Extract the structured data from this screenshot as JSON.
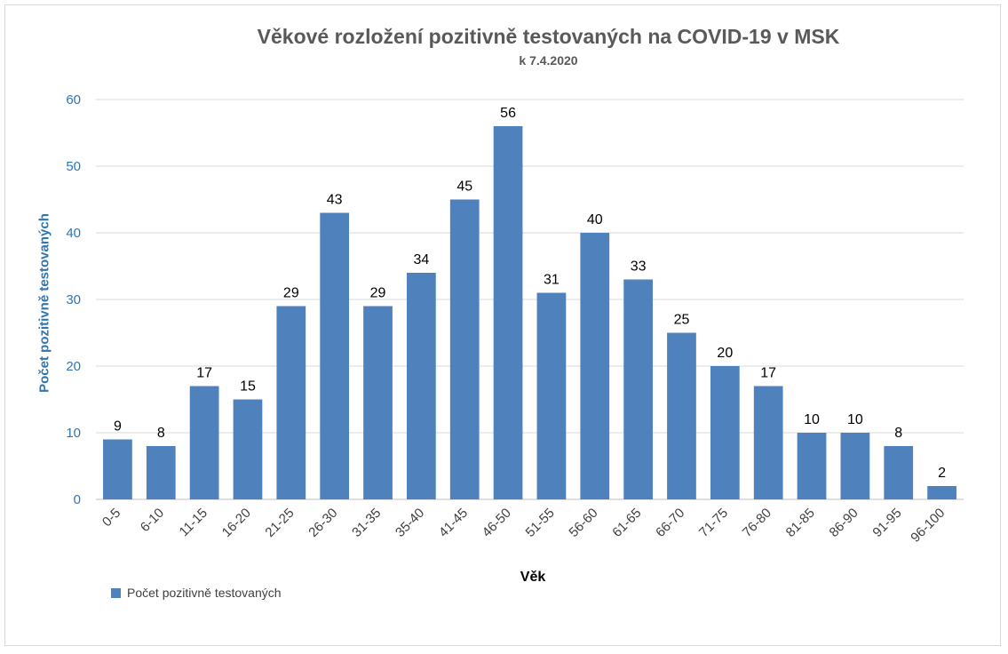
{
  "chart_data": {
    "type": "bar",
    "title": "Věkové rozložení pozitivně testovaných na COVID-19 v MSK",
    "subtitle": "k 7.4.2020",
    "xlabel": "Věk",
    "ylabel": "Počet pozitivně testovaných",
    "ylim": [
      0,
      60
    ],
    "yticks": [
      0,
      10,
      20,
      30,
      40,
      50,
      60
    ],
    "grid": true,
    "legend_position": "bottom-left",
    "categories": [
      "0-5",
      "6-10",
      "11-15",
      "16-20",
      "21-25",
      "26-30",
      "31-35",
      "35-40",
      "41-45",
      "46-50",
      "51-55",
      "56-60",
      "61-65",
      "66-70",
      "71-75",
      "76-80",
      "81-85",
      "86-90",
      "91-95",
      "96-100"
    ],
    "series": [
      {
        "name": "Počet pozitivně testovaných",
        "color": "#4f81bd",
        "values": [
          9,
          8,
          17,
          15,
          29,
          43,
          29,
          34,
          45,
          56,
          31,
          40,
          33,
          25,
          20,
          17,
          10,
          10,
          8,
          2
        ]
      }
    ]
  }
}
